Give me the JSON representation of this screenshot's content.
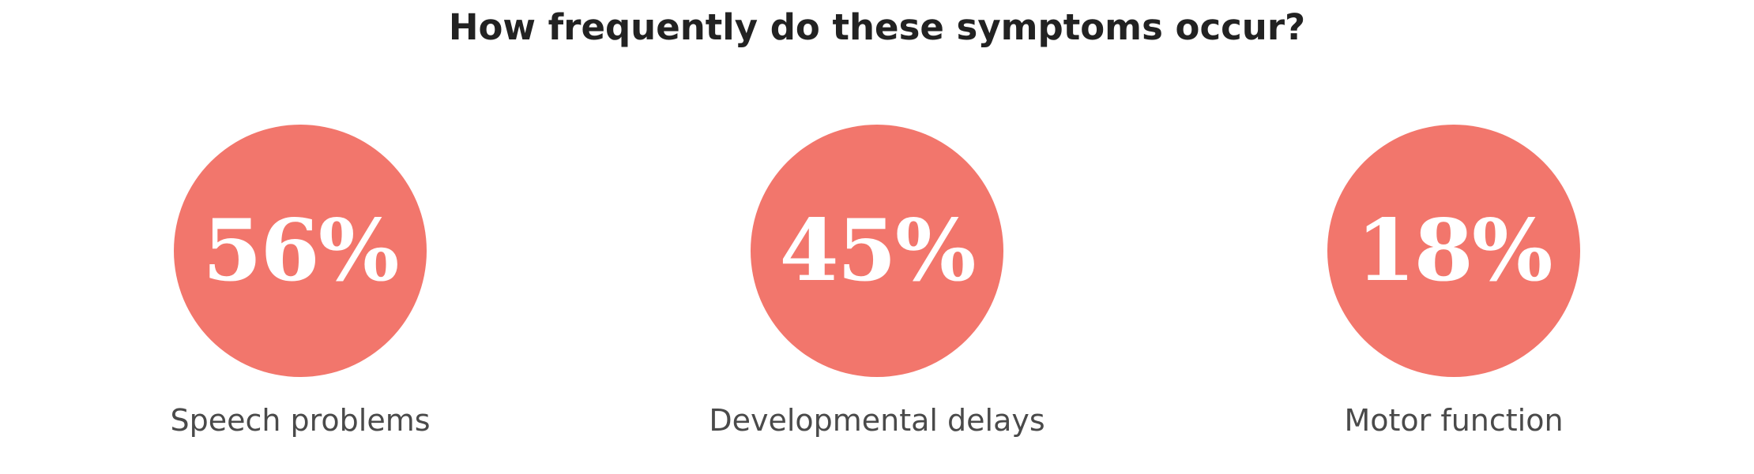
{
  "chart_data": {
    "type": "stat-circles",
    "title": "How frequently do these symptoms occur?",
    "categories": [
      "Speech problems",
      "Developmental delays",
      "Motor function"
    ],
    "values": [
      56,
      45,
      18
    ],
    "unit": "%",
    "value_labels": [
      "56%",
      "45%",
      "18%"
    ],
    "circle_color": "#f2766c",
    "value_text_color": "#ffffff",
    "label_color": "#4a4a4a",
    "title_color": "#222222"
  }
}
